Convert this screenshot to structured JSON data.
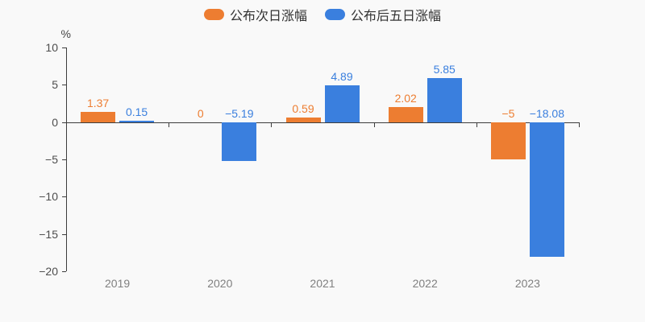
{
  "colors": {
    "background": "#f9f9f9",
    "axis": "#3d3d3d",
    "y_tick_label": "#4d4d4d",
    "x_tick_label": "#808080",
    "legend_text": "#333333",
    "series_orange": "#ed7d31",
    "series_blue": "#3a7fde"
  },
  "legend": {
    "items": [
      {
        "label": "公布次日涨幅",
        "color": "#ed7d31"
      },
      {
        "label": "公布后五日涨幅",
        "color": "#3a7fde"
      }
    ]
  },
  "chart_data": {
    "type": "bar",
    "title": "",
    "xlabel": "",
    "ylabel": "%",
    "categories": [
      "2019",
      "2020",
      "2021",
      "2022",
      "2023"
    ],
    "series": [
      {
        "name": "公布次日涨幅",
        "color": "#ed7d31",
        "values": [
          1.37,
          0,
          0.59,
          2.02,
          -5
        ],
        "labels": [
          "1.37",
          "0",
          "0.59",
          "2.02",
          "−5"
        ]
      },
      {
        "name": "公布后五日涨幅",
        "color": "#3a7fde",
        "values": [
          0.15,
          -5.19,
          4.89,
          5.85,
          -18.08
        ],
        "labels": [
          "0.15",
          "−5.19",
          "4.89",
          "5.85",
          "−18.08"
        ]
      }
    ],
    "ylim": [
      -20,
      10
    ],
    "yticks": [
      10,
      5,
      0,
      -5,
      -10,
      -15,
      -20
    ],
    "ytick_labels": [
      "10",
      "5",
      "0",
      "−5",
      "−10",
      "−15",
      "−20"
    ],
    "grid": false,
    "legend_position": "top-center"
  }
}
